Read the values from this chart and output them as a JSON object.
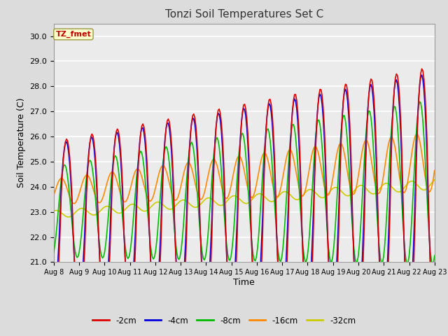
{
  "title": "Tonzi Soil Temperatures Set C",
  "xlabel": "Time",
  "ylabel": "Soil Temperature (C)",
  "ylim": [
    21.0,
    30.5
  ],
  "background_color": "#dcdcdc",
  "plot_background": "#ebebeb",
  "legend_label": "TZ_fmet",
  "series": {
    "-2cm": {
      "color": "#dd0000",
      "lw": 1.2
    },
    "-4cm": {
      "color": "#0000dd",
      "lw": 1.2
    },
    "-8cm": {
      "color": "#00bb00",
      "lw": 1.2
    },
    "-16cm": {
      "color": "#ff8800",
      "lw": 1.2
    },
    "-32cm": {
      "color": "#cccc00",
      "lw": 1.2
    }
  },
  "tick_days": [
    0,
    1,
    2,
    3,
    4,
    5,
    6,
    7,
    8,
    9,
    10,
    11,
    12,
    13,
    14,
    15
  ],
  "tick_labels": [
    "Aug 8",
    "Aug 9",
    "Aug 10",
    "Aug 11",
    "Aug 12",
    "Aug 13",
    "Aug 14",
    "Aug 15",
    "Aug 16",
    "Aug 17",
    "Aug 18",
    "Aug 19",
    "Aug 20",
    "Aug 21",
    "Aug 22",
    "Aug 23"
  ],
  "yticks": [
    21.0,
    22.0,
    23.0,
    24.0,
    25.0,
    26.0,
    27.0,
    28.0,
    29.0,
    30.0
  ]
}
